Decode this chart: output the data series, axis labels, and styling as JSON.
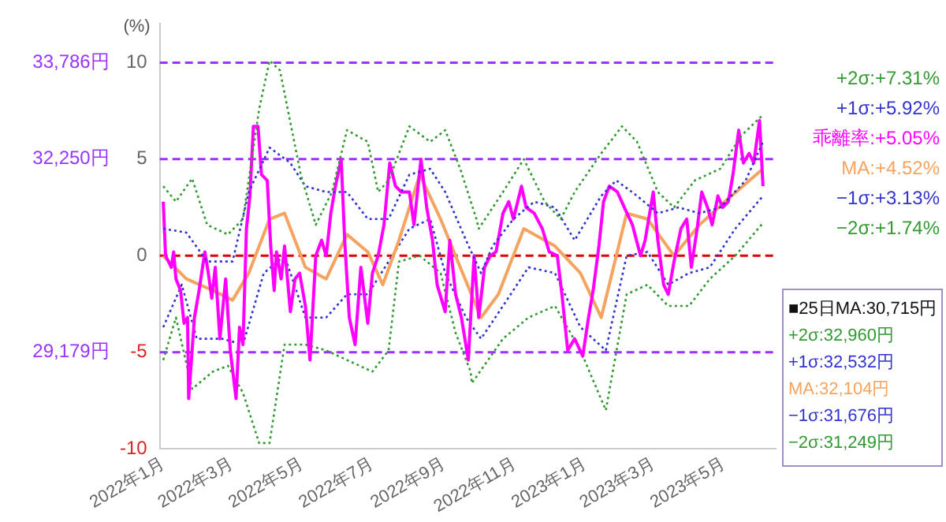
{
  "chart_data": {
    "type": "line",
    "ylabel": "(%)",
    "xlim": [
      "2021-12-29",
      "2023-06-15"
    ],
    "xticks": [
      {
        "value": "2022-01-01",
        "label": "2022年1月"
      },
      {
        "value": "2022-03-01",
        "label": "2022年3月"
      },
      {
        "value": "2022-05-01",
        "label": "2022年5月"
      },
      {
        "value": "2022-07-01",
        "label": "2022年7月"
      },
      {
        "value": "2022-09-01",
        "label": "2022年9月"
      },
      {
        "value": "2022-11-01",
        "label": "2022年11月"
      },
      {
        "value": "2023-01-01",
        "label": "2023年1月"
      },
      {
        "value": "2023-03-01",
        "label": "2023年3月"
      },
      {
        "value": "2023-05-01",
        "label": "2023年5月"
      }
    ],
    "ylim": [
      -10,
      12
    ],
    "yticks": [
      10,
      5,
      0,
      -5,
      -10
    ],
    "grid": false,
    "legend": false,
    "marker": "none",
    "ref_lines": [
      {
        "axis": "y",
        "value": 10,
        "label": "33,786円",
        "color": "#9933ff",
        "line_style": "dashed"
      },
      {
        "axis": "y",
        "value": 5,
        "label": "32,250円",
        "color": "#9933ff",
        "line_style": "dashed"
      },
      {
        "axis": "y",
        "value": 0,
        "color": "#e00000",
        "line_style": "dashed"
      },
      {
        "axis": "y",
        "value": -5,
        "label": "29,179円",
        "color": "#9933ff",
        "line_style": "dashed"
      }
    ],
    "annotations": [
      "+2σ:+7.31%",
      "+1σ:+5.92%",
      "乖離率:+5.05%",
      "MA:+4.52%",
      "−1σ:+3.13%",
      "−2σ:+1.74%",
      "■25日MA:30,715円",
      "+2σ:32,960円",
      "+1σ:32,532円",
      "MA:32,104円",
      "−1σ:31,676円",
      "−2σ:31,249円"
    ],
    "series": [
      {
        "color": "#339933",
        "line_style": "dotted",
        "x": [
          "2022-01-01",
          "2022-01-12",
          "2022-01-26",
          "2022-02-08",
          "2022-02-26",
          "2022-03-11",
          "2022-03-25",
          "2022-04-03",
          "2022-04-12",
          "2022-04-30",
          "2022-05-13",
          "2022-05-27",
          "2022-06-09",
          "2022-06-27",
          "2022-07-06",
          "2022-07-15",
          "2022-08-02",
          "2022-08-20",
          "2022-09-02",
          "2022-09-15",
          "2022-09-29",
          "2022-10-01",
          "2022-10-22",
          "2022-11-09",
          "2022-11-27",
          "2022-12-11",
          "2022-12-23",
          "2023-01-15",
          "2023-02-02",
          "2023-02-15",
          "2023-03-05",
          "2023-03-19",
          "2023-04-06",
          "2023-04-28",
          "2023-05-16",
          "2023-06-04"
        ],
        "values": [
          3.6,
          2.8,
          4.0,
          1.6,
          1.1,
          1.9,
          7.6,
          10.1,
          9.6,
          4.2,
          1.6,
          3.3,
          6.5,
          5.9,
          3.3,
          3.9,
          6.7,
          5.9,
          6.5,
          4.5,
          1.9,
          1.4,
          3.3,
          5.0,
          2.8,
          1.9,
          3.3,
          5.3,
          6.7,
          5.9,
          3.3,
          2.5,
          3.9,
          4.5,
          6.2,
          7.3
        ]
      },
      {
        "color": "#3333cc",
        "line_style": "dotted",
        "x": [
          "2022-01-01",
          "2022-01-21",
          "2022-02-08",
          "2022-03-02",
          "2022-03-16",
          "2022-04-03",
          "2022-04-21",
          "2022-05-04",
          "2022-05-22",
          "2022-06-09",
          "2022-06-27",
          "2022-07-15",
          "2022-08-02",
          "2022-08-20",
          "2022-09-02",
          "2022-09-20",
          "2022-10-03",
          "2022-10-13",
          "2022-10-31",
          "2022-11-18",
          "2022-12-06",
          "2022-12-23",
          "2023-01-15",
          "2023-01-28",
          "2023-02-15",
          "2023-03-05",
          "2023-03-23",
          "2023-04-10",
          "2023-04-28",
          "2023-05-20",
          "2023-06-04"
        ],
        "values": [
          1.4,
          1.2,
          -0.3,
          -0.3,
          3.3,
          5.6,
          4.8,
          3.6,
          3.3,
          3.3,
          1.9,
          1.9,
          4.2,
          4.5,
          3.3,
          0.8,
          -0.9,
          0.5,
          1.9,
          2.8,
          2.5,
          0.8,
          3.1,
          3.9,
          3.1,
          2.2,
          2.5,
          2.2,
          2.5,
          3.9,
          5.9
        ]
      },
      {
        "color": "#ff00ff",
        "line_style": "solid",
        "x": [
          "2022-01-01",
          "2022-01-03",
          "2022-01-08",
          "2022-01-10",
          "2022-01-12",
          "2022-01-16",
          "2022-01-19",
          "2022-01-22",
          "2022-01-23",
          "2022-01-28",
          "2022-02-01",
          "2022-02-06",
          "2022-02-09",
          "2022-02-12",
          "2022-02-15",
          "2022-02-19",
          "2022-02-24",
          "2022-02-28",
          "2022-03-05",
          "2022-03-08",
          "2022-03-11",
          "2022-03-14",
          "2022-03-17",
          "2022-03-20",
          "2022-03-24",
          "2022-03-27",
          "2022-04-01",
          "2022-04-04",
          "2022-04-07",
          "2022-04-09",
          "2022-04-13",
          "2022-04-16",
          "2022-04-21",
          "2022-04-25",
          "2022-04-29",
          "2022-05-04",
          "2022-05-08",
          "2022-05-13",
          "2022-05-18",
          "2022-05-22",
          "2022-05-26",
          "2022-05-30",
          "2022-06-04",
          "2022-06-07",
          "2022-06-11",
          "2022-06-16",
          "2022-06-21",
          "2022-06-27",
          "2022-07-01",
          "2022-07-06",
          "2022-07-11",
          "2022-07-16",
          "2022-07-21",
          "2022-07-26",
          "2022-08-02",
          "2022-08-06",
          "2022-08-12",
          "2022-08-17",
          "2022-08-22",
          "2022-08-26",
          "2022-09-02",
          "2022-09-06",
          "2022-09-11",
          "2022-09-16",
          "2022-09-22",
          "2022-09-27",
          "2022-10-01",
          "2022-10-06",
          "2022-10-11",
          "2022-10-16",
          "2022-10-22",
          "2022-10-27",
          "2022-10-31",
          "2022-11-07",
          "2022-11-11",
          "2022-11-18",
          "2022-11-25",
          "2022-12-01",
          "2022-12-08",
          "2022-12-12",
          "2022-12-17",
          "2022-12-23",
          "2022-12-30",
          "2023-01-04",
          "2023-01-08",
          "2023-01-13",
          "2023-01-17",
          "2023-01-22",
          "2023-01-29",
          "2023-02-04",
          "2023-02-11",
          "2023-02-18",
          "2023-02-22",
          "2023-03-01",
          "2023-03-05",
          "2023-03-10",
          "2023-03-14",
          "2023-03-19",
          "2023-03-25",
          "2023-03-30",
          "2023-04-03",
          "2023-04-08",
          "2023-04-12",
          "2023-04-17",
          "2023-04-21",
          "2023-04-26",
          "2023-04-30",
          "2023-05-05",
          "2023-05-09",
          "2023-05-14",
          "2023-05-18",
          "2023-05-23",
          "2023-05-27",
          "2023-06-01",
          "2023-06-04"
        ],
        "values": [
          2.8,
          0,
          -0.6,
          0.2,
          -1.2,
          -1.8,
          -3.5,
          -3.2,
          -7.4,
          -3.2,
          -1.8,
          0.2,
          -0.9,
          -2.2,
          -0.6,
          -4.3,
          -1.2,
          -4.9,
          -7.4,
          -3.7,
          -4.6,
          1.4,
          3.1,
          6.7,
          6.7,
          4.2,
          3.9,
          0.5,
          -1.8,
          0.2,
          -1.2,
          0.5,
          -2.9,
          -1.2,
          -0.9,
          -2.6,
          -5.4,
          0,
          0.8,
          0,
          2.2,
          3.6,
          5.0,
          0.8,
          -3.2,
          -4.6,
          -0.6,
          -3.5,
          -0.9,
          0,
          1.6,
          4.8,
          3.6,
          3.3,
          3.3,
          1.6,
          5.0,
          2.5,
          0.8,
          -1.5,
          -2.9,
          0.8,
          -2.0,
          -3.2,
          -5.4,
          0,
          -3.2,
          -0.6,
          0,
          0.2,
          2.2,
          2.8,
          1.9,
          3.6,
          2.5,
          2.2,
          1.4,
          0.2,
          0,
          -2.0,
          -4.9,
          -4.3,
          -5.2,
          -3.2,
          -1.8,
          0.5,
          2.8,
          3.6,
          3.3,
          2.5,
          1.6,
          0,
          0.8,
          3.3,
          0.8,
          -1.5,
          -2.0,
          -0.3,
          1.4,
          1.9,
          -0.6,
          1.4,
          3.3,
          2.5,
          1.6,
          3.1,
          2.5,
          2.8,
          4.2,
          6.5,
          4.8,
          5.3,
          4.8,
          7.0,
          3.6
        ]
      },
      {
        "color": "#f4a460",
        "line_style": "solid",
        "x": [
          "2022-01-01",
          "2022-01-21",
          "2022-02-13",
          "2022-03-02",
          "2022-03-16",
          "2022-04-03",
          "2022-04-16",
          "2022-05-04",
          "2022-05-22",
          "2022-06-09",
          "2022-06-27",
          "2022-07-10",
          "2022-07-24",
          "2022-08-11",
          "2022-08-29",
          "2022-09-15",
          "2022-10-03",
          "2022-10-18",
          "2022-11-09",
          "2022-12-06",
          "2022-12-28",
          "2023-01-15",
          "2023-02-06",
          "2023-02-24",
          "2023-03-19",
          "2023-04-10",
          "2023-05-02",
          "2023-06-04"
        ],
        "values": [
          0,
          -1.2,
          -1.8,
          -2.3,
          -0.9,
          1.9,
          2.2,
          -0.6,
          -1.2,
          1.1,
          0.2,
          -1.5,
          0.8,
          4.2,
          1.9,
          -0.6,
          -3.2,
          -2.0,
          1.4,
          0.5,
          -0.9,
          -3.2,
          2.2,
          1.9,
          0,
          1.6,
          2.8,
          4.5
        ]
      },
      {
        "color": "#3333cc",
        "line_style": "dotted",
        "x": [
          "2022-01-01",
          "2022-01-17",
          "2022-01-30",
          "2022-02-21",
          "2022-03-11",
          "2022-03-29",
          "2022-04-16",
          "2022-05-04",
          "2022-05-22",
          "2022-06-09",
          "2022-06-27",
          "2022-07-15",
          "2022-08-02",
          "2022-08-20",
          "2022-09-02",
          "2022-09-20",
          "2022-10-03",
          "2022-10-22",
          "2022-11-13",
          "2022-12-06",
          "2022-12-28",
          "2023-01-19",
          "2023-02-06",
          "2023-02-24",
          "2023-03-14",
          "2023-04-01",
          "2023-04-19",
          "2023-05-11",
          "2023-06-04"
        ],
        "values": [
          -3.7,
          -1.5,
          -4.3,
          -4.3,
          -4.6,
          -0.9,
          0,
          -3.2,
          -3.2,
          -2.0,
          -2.0,
          -0.3,
          1.4,
          1.9,
          -0.9,
          -3.2,
          -4.3,
          -2.6,
          -0.6,
          -0.9,
          -3.7,
          -4.9,
          0,
          0.2,
          -1.5,
          -0.9,
          -0.6,
          1.4,
          3.1
        ]
      },
      {
        "color": "#339933",
        "line_style": "dotted",
        "x": [
          "2022-01-01",
          "2022-01-12",
          "2022-01-26",
          "2022-02-13",
          "2022-02-26",
          "2022-03-11",
          "2022-03-25",
          "2022-04-03",
          "2022-04-16",
          "2022-05-04",
          "2022-05-22",
          "2022-06-09",
          "2022-07-01",
          "2022-07-15",
          "2022-07-24",
          "2022-08-11",
          "2022-08-29",
          "2022-09-11",
          "2022-09-24",
          "2022-09-25",
          "2022-10-22",
          "2022-11-13",
          "2022-12-06",
          "2022-12-28",
          "2023-01-19",
          "2023-02-06",
          "2023-02-24",
          "2023-03-14",
          "2023-04-01",
          "2023-04-19",
          "2023-05-11",
          "2023-06-04"
        ],
        "values": [
          -5.4,
          -3.2,
          -6.9,
          -6.0,
          -5.7,
          -7.1,
          -9.7,
          -9.7,
          -4.6,
          -4.6,
          -4.9,
          -5.4,
          -6.0,
          -4.9,
          -0.3,
          0,
          -0.9,
          -4.0,
          -6.0,
          -6.6,
          -4.3,
          -3.2,
          -2.6,
          -4.9,
          -8.0,
          -2.0,
          -1.5,
          -2.6,
          -2.6,
          -1.2,
          0,
          1.7
        ]
      }
    ]
  }
}
